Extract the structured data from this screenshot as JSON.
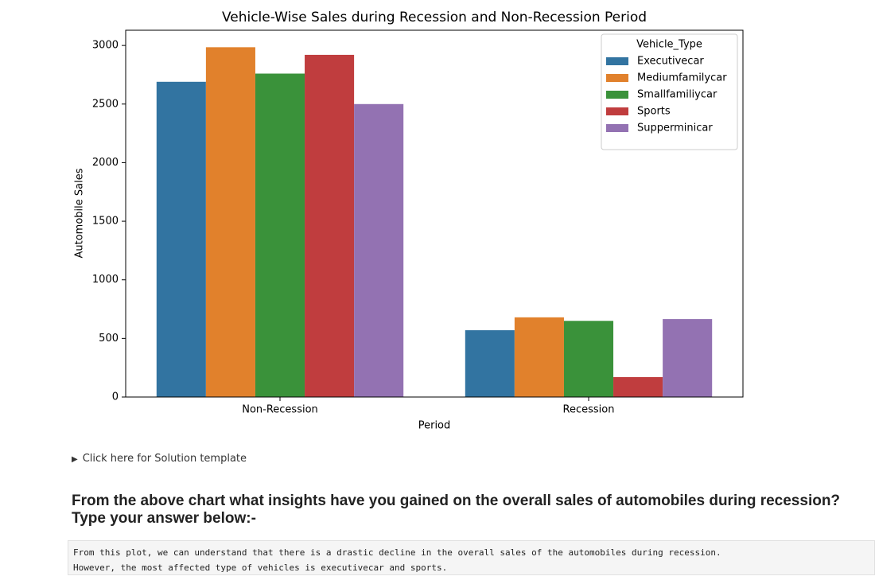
{
  "chart_data": {
    "type": "bar",
    "title": "Vehicle-Wise Sales during Recession and Non-Recession Period",
    "xlabel": "Period",
    "ylabel": "Automobile Sales",
    "categories": [
      "Non-Recession",
      "Recession"
    ],
    "series": [
      {
        "name": "Executivecar",
        "color": "#3274a1",
        "values": [
          2690,
          570
        ]
      },
      {
        "name": "Mediumfamilycar",
        "color": "#e1812c",
        "values": [
          2985,
          680
        ]
      },
      {
        "name": "Smallfamiliycar",
        "color": "#3a923a",
        "values": [
          2760,
          650
        ]
      },
      {
        "name": "Sports",
        "color": "#c03d3e",
        "values": [
          2920,
          170
        ]
      },
      {
        "name": "Supperminicar",
        "color": "#9372b2",
        "values": [
          2500,
          665
        ]
      }
    ],
    "legend_title": "Vehicle_Type",
    "legend": "upper right",
    "ylim": [
      0,
      3130
    ],
    "yticks": [
      0,
      500,
      1000,
      1500,
      2000,
      2500,
      3000
    ],
    "grid": false
  },
  "notebook": {
    "solution_toggle": "Click here for Solution template",
    "question": [
      "From the above chart what insights have you gained on the overall sales of automobiles during recession?",
      "Type your answer below:-"
    ],
    "answer": [
      "From this plot, we can understand that there is a drastic decline in the overall sales of the automobiles during recession.",
      "However, the most affected type of vehicles is executivecar and sports."
    ]
  }
}
